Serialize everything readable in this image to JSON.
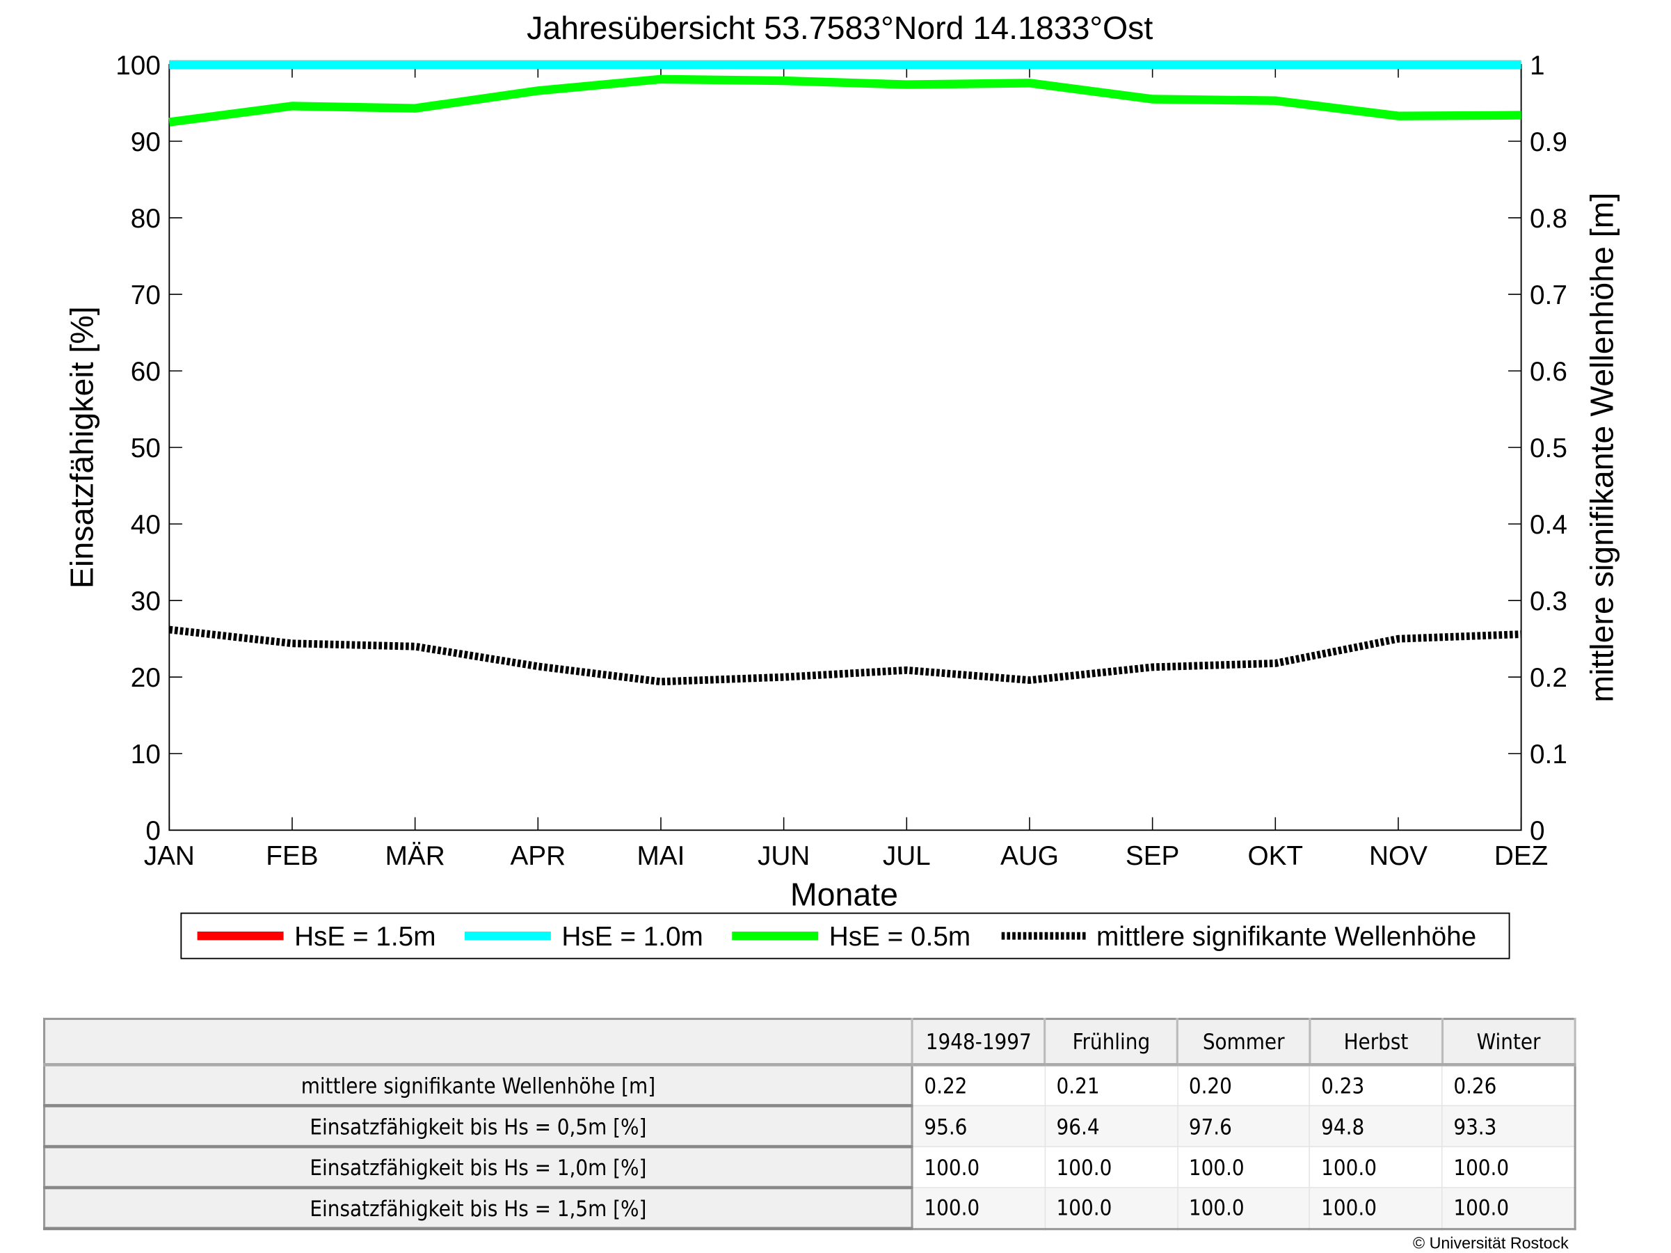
{
  "chart_data": {
    "type": "line",
    "title": "Jahresübersicht  53.7583°Nord  14.1833°Ost",
    "xlabel": "Monate",
    "ylabel": "Einsatzfähigkeit [%]",
    "y2label": "mittlere signifikante Wellenhöhe [m]",
    "categories": [
      "JAN",
      "FEB",
      "MÄR",
      "APR",
      "MAI",
      "JUN",
      "JUL",
      "AUG",
      "SEP",
      "OKT",
      "NOV",
      "DEZ"
    ],
    "ylim": [
      0,
      100
    ],
    "y2lim": [
      0,
      1
    ],
    "yticks": [
      "0",
      "10",
      "20",
      "30",
      "40",
      "50",
      "60",
      "70",
      "80",
      "90",
      "100"
    ],
    "y2ticks": [
      "0",
      "0.1",
      "0.2",
      "0.3",
      "0.4",
      "0.5",
      "0.6",
      "0.7",
      "0.8",
      "0.9",
      "1"
    ],
    "legend_placement": "bottom",
    "series": [
      {
        "name": "HsE = 1.5m",
        "color": "#ff0000",
        "axis": "left",
        "values": [
          100,
          100,
          100,
          100,
          100,
          100,
          100,
          100,
          100,
          100,
          100,
          100
        ]
      },
      {
        "name": "HsE = 1.0m",
        "color": "#00ffff",
        "axis": "left",
        "values": [
          100,
          100,
          100,
          100,
          100,
          100,
          100,
          100,
          100,
          100,
          100,
          100
        ]
      },
      {
        "name": "HsE = 0.5m",
        "color": "#00ff00",
        "axis": "left",
        "values": [
          92.5,
          94.6,
          94.3,
          96.6,
          98.1,
          97.9,
          97.4,
          97.6,
          95.5,
          95.3,
          93.3,
          93.4
        ]
      },
      {
        "name": "mittlere signifikante Wellenhöhe",
        "color": "#000000",
        "axis": "right",
        "dashed": true,
        "values": [
          0.262,
          0.244,
          0.24,
          0.214,
          0.194,
          0.2,
          0.209,
          0.196,
          0.213,
          0.218,
          0.25,
          0.256
        ]
      }
    ]
  },
  "table": {
    "headers": [
      "1948-1997",
      "Frühling",
      "Sommer",
      "Herbst",
      "Winter"
    ],
    "rows": [
      {
        "label": "mittlere signifikante Wellenhöhe [m]",
        "values": [
          "0.22",
          "0.21",
          "0.20",
          "0.23",
          "0.26"
        ]
      },
      {
        "label": "Einsatzfähigkeit bis Hs = 0,5m [%]",
        "values": [
          "95.6",
          "96.4",
          "97.6",
          "94.8",
          "93.3"
        ]
      },
      {
        "label": "Einsatzfähigkeit bis Hs = 1,0m [%]",
        "values": [
          "100.0",
          "100.0",
          "100.0",
          "100.0",
          "100.0"
        ]
      },
      {
        "label": "Einsatzfähigkeit bis Hs = 1,5m [%]",
        "values": [
          "100.0",
          "100.0",
          "100.0",
          "100.0",
          "100.0"
        ]
      }
    ]
  },
  "copyright": "© Universität Rostock"
}
